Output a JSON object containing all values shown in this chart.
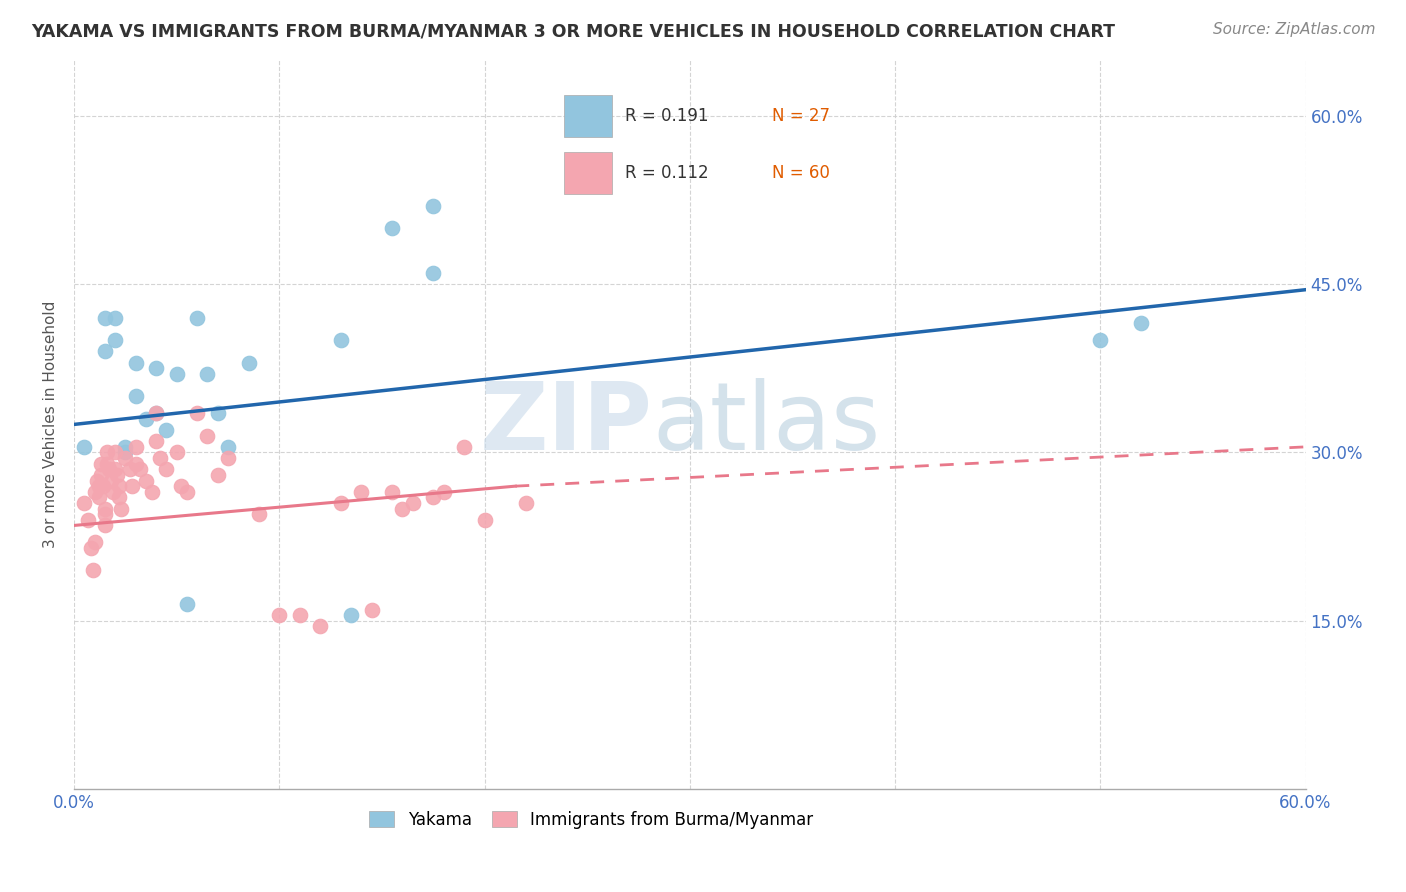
{
  "title": "YAKAMA VS IMMIGRANTS FROM BURMA/MYANMAR 3 OR MORE VEHICLES IN HOUSEHOLD CORRELATION CHART",
  "source": "Source: ZipAtlas.com",
  "ylabel": "3 or more Vehicles in Household",
  "xlim": [
    0.0,
    0.6
  ],
  "ylim": [
    0.0,
    0.65
  ],
  "ytick_positions": [
    0.15,
    0.3,
    0.45,
    0.6
  ],
  "ytick_labels_right": [
    "15.0%",
    "30.0%",
    "45.0%",
    "60.0%"
  ],
  "legend_r1": "R = 0.191",
  "legend_n1": "N = 27",
  "legend_r2": "R = 0.112",
  "legend_n2": "N = 60",
  "r1_color": "#4472c4",
  "n1_color": "#e05c00",
  "r2_color": "#4472c4",
  "n2_color": "#e05c00",
  "yakama_color": "#92c5de",
  "burma_color": "#f4a6b0",
  "trendline_yakama_color": "#2166ac",
  "trendline_burma_color": "#e8788a",
  "watermark_zip": "ZIP",
  "watermark_atlas": "atlas",
  "legend_label1": "Yakama",
  "legend_label2": "Immigrants from Burma/Myanmar",
  "background_color": "#ffffff",
  "grid_color": "#d0d0d0",
  "yakama_x": [
    0.005,
    0.015,
    0.015,
    0.02,
    0.02,
    0.025,
    0.025,
    0.03,
    0.03,
    0.035,
    0.04,
    0.04,
    0.045,
    0.05,
    0.055,
    0.06,
    0.065,
    0.07,
    0.075,
    0.085,
    0.13,
    0.135,
    0.155,
    0.175,
    0.175,
    0.5,
    0.52
  ],
  "yakama_y": [
    0.305,
    0.42,
    0.39,
    0.42,
    0.4,
    0.305,
    0.3,
    0.38,
    0.35,
    0.33,
    0.375,
    0.335,
    0.32,
    0.37,
    0.165,
    0.42,
    0.37,
    0.335,
    0.305,
    0.38,
    0.4,
    0.155,
    0.5,
    0.52,
    0.46,
    0.4,
    0.415
  ],
  "burma_x": [
    0.005,
    0.007,
    0.008,
    0.009,
    0.01,
    0.01,
    0.011,
    0.012,
    0.012,
    0.013,
    0.013,
    0.014,
    0.015,
    0.015,
    0.015,
    0.016,
    0.016,
    0.017,
    0.018,
    0.019,
    0.02,
    0.02,
    0.021,
    0.022,
    0.022,
    0.023,
    0.025,
    0.027,
    0.028,
    0.03,
    0.03,
    0.032,
    0.035,
    0.038,
    0.04,
    0.04,
    0.042,
    0.045,
    0.05,
    0.052,
    0.055,
    0.06,
    0.065,
    0.07,
    0.075,
    0.09,
    0.1,
    0.11,
    0.12,
    0.13,
    0.14,
    0.145,
    0.155,
    0.16,
    0.165,
    0.175,
    0.18,
    0.19,
    0.2,
    0.22
  ],
  "burma_y": [
    0.255,
    0.24,
    0.215,
    0.195,
    0.265,
    0.22,
    0.275,
    0.27,
    0.26,
    0.29,
    0.28,
    0.27,
    0.25,
    0.245,
    0.235,
    0.3,
    0.29,
    0.285,
    0.275,
    0.265,
    0.3,
    0.285,
    0.28,
    0.27,
    0.26,
    0.25,
    0.295,
    0.285,
    0.27,
    0.305,
    0.29,
    0.285,
    0.275,
    0.265,
    0.335,
    0.31,
    0.295,
    0.285,
    0.3,
    0.27,
    0.265,
    0.335,
    0.315,
    0.28,
    0.295,
    0.245,
    0.155,
    0.155,
    0.145,
    0.255,
    0.265,
    0.16,
    0.265,
    0.25,
    0.255,
    0.26,
    0.265,
    0.305,
    0.24,
    0.255
  ],
  "trendline_yakama_x0": 0.0,
  "trendline_yakama_x1": 0.6,
  "trendline_yakama_y0": 0.325,
  "trendline_yakama_y1": 0.445,
  "trendline_burma_solid_x0": 0.0,
  "trendline_burma_solid_x1": 0.215,
  "trendline_burma_y0": 0.235,
  "trendline_burma_y1": 0.27,
  "trendline_burma_dash_x0": 0.215,
  "trendline_burma_dash_x1": 0.6,
  "trendline_burma_dash_y0": 0.27,
  "trendline_burma_dash_y1": 0.305
}
